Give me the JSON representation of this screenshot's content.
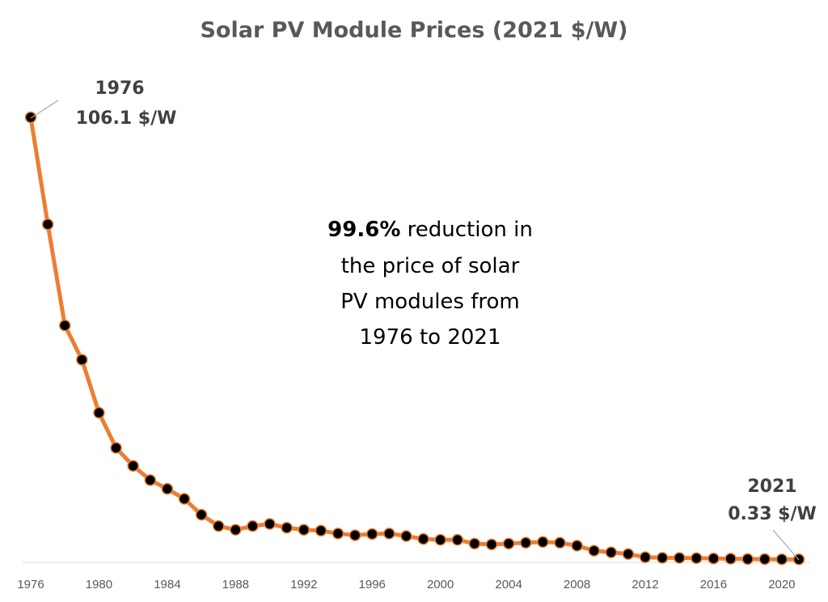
{
  "chart_data": {
    "type": "line",
    "title": "Solar PV Module Prices (2021 $/W)",
    "x": [
      1976,
      1977,
      1978,
      1979,
      1980,
      1981,
      1982,
      1983,
      1984,
      1985,
      1986,
      1987,
      1988,
      1989,
      1990,
      1991,
      1992,
      1993,
      1994,
      1995,
      1996,
      1997,
      1998,
      1999,
      2000,
      2001,
      2002,
      2003,
      2004,
      2005,
      2006,
      2007,
      2008,
      2009,
      2010,
      2011,
      2012,
      2013,
      2014,
      2015,
      2016,
      2017,
      2018,
      2019,
      2020,
      2021
    ],
    "series": [
      {
        "values": [
          106.1,
          80.5,
          56.3,
          48.1,
          35.4,
          27.0,
          22.7,
          19.3,
          17.2,
          14.8,
          11.0,
          8.3,
          7.4,
          8.3,
          8.8,
          7.9,
          7.4,
          7.2,
          6.5,
          6.1,
          6.4,
          6.5,
          5.9,
          5.2,
          5.0,
          5.0,
          4.1,
          3.9,
          4.1,
          4.3,
          4.5,
          4.3,
          3.6,
          2.4,
          2.0,
          1.6,
          0.84,
          0.7,
          0.68,
          0.62,
          0.54,
          0.48,
          0.4,
          0.38,
          0.34,
          0.33
        ],
        "color": "#ed7d31",
        "marker_color": "#000000"
      }
    ],
    "xlim": [
      1976,
      2021
    ],
    "ylim": [
      0,
      115
    ],
    "x_ticks": [
      "1976",
      "1980",
      "1984",
      "1988",
      "1992",
      "1996",
      "2000",
      "2004",
      "2008",
      "2012",
      "2016",
      "2020"
    ],
    "grid": false,
    "callouts": [
      {
        "year_label": "1976",
        "value_label": "106.1 $/W"
      },
      {
        "year_label": "2021",
        "value_label": "0.33 $/W"
      }
    ],
    "annotation": {
      "bold": "99.6%",
      "lines": [
        " reduction in",
        "the price of solar",
        "PV modules from",
        "1976 to 2021"
      ]
    }
  }
}
